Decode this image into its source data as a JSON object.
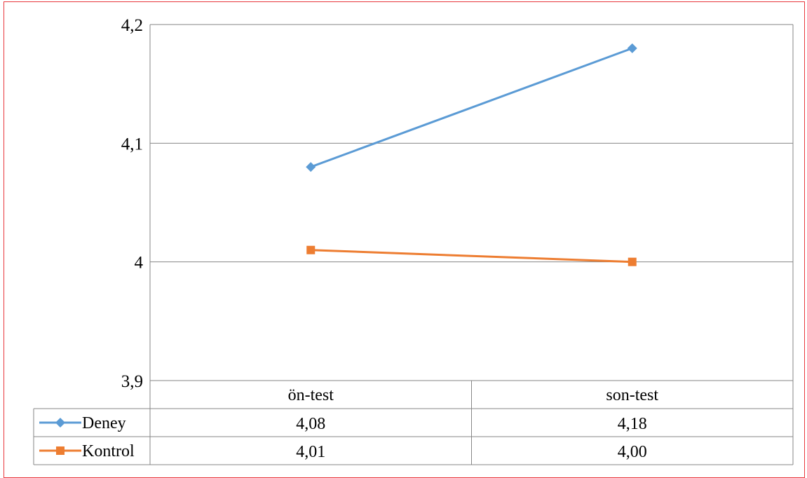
{
  "chart_data": {
    "type": "line",
    "categories": [
      "ön-test",
      "son-test"
    ],
    "series": [
      {
        "name": "Deney",
        "values": [
          4.08,
          4.18
        ],
        "labels": [
          "4,08",
          "4,18"
        ],
        "color": "#5b9bd5",
        "marker": "diamond"
      },
      {
        "name": "Kontrol",
        "values": [
          4.01,
          4.0
        ],
        "labels": [
          "4,01",
          "4,00"
        ],
        "color": "#ed7d31",
        "marker": "square"
      }
    ],
    "y_ticks": [
      {
        "value": 3.9,
        "label": "3,9"
      },
      {
        "value": 4.0,
        "label": "4"
      },
      {
        "value": 4.1,
        "label": "4,1"
      },
      {
        "value": 4.2,
        "label": "4,2"
      }
    ],
    "ylim": [
      3.9,
      4.2
    ],
    "grid": true,
    "legend": "data-table",
    "border_color": "#e8383d"
  }
}
